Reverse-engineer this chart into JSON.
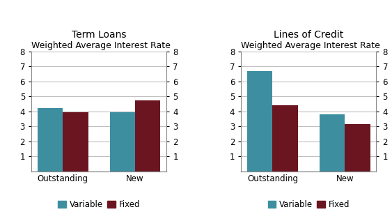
{
  "chart1_title": "Term Loans",
  "chart2_title": "Lines of Credit",
  "subtitle": "Weighted Average Interest Rate",
  "categories": [
    "Outstanding",
    "New"
  ],
  "chart1_variable": [
    4.2,
    3.95
  ],
  "chart1_fixed": [
    3.95,
    4.75
  ],
  "chart2_variable": [
    6.7,
    3.78
  ],
  "chart2_fixed": [
    4.4,
    3.15
  ],
  "ylim": [
    0,
    8
  ],
  "yticks": [
    1,
    2,
    3,
    4,
    5,
    6,
    7,
    8
  ],
  "variable_color": "#3d8fa0",
  "fixed_color": "#6b1520",
  "bar_width": 0.35,
  "background_color": "#ffffff",
  "legend_labels": [
    "Variable",
    "Fixed"
  ],
  "title_fontsize": 10,
  "subtitle_fontsize": 9,
  "tick_fontsize": 8.5,
  "legend_fontsize": 8.5
}
